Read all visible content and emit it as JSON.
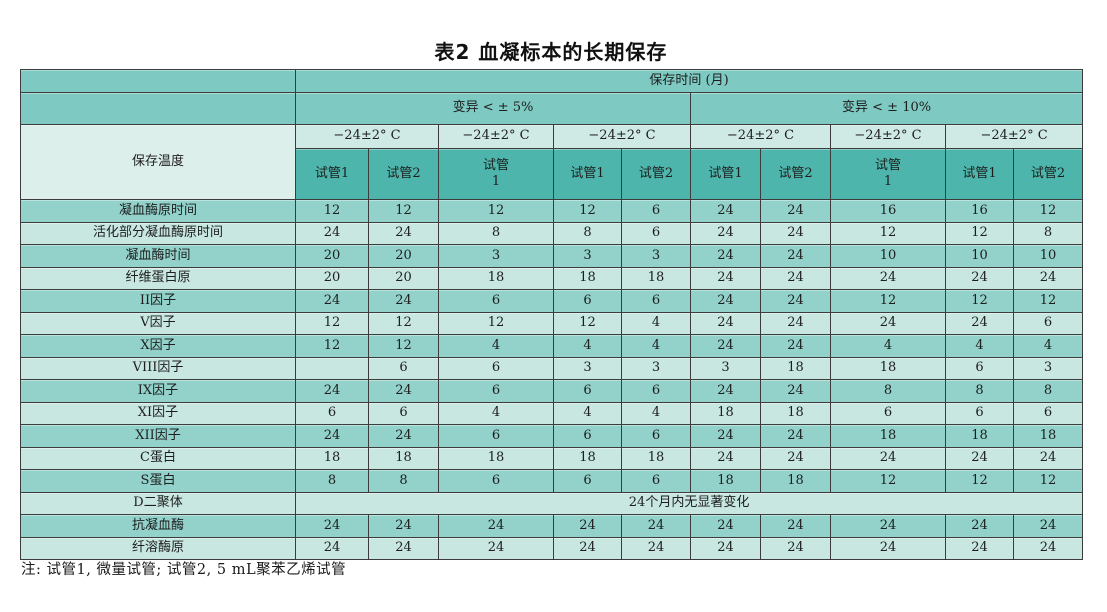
{
  "title": "表2 血凝标本的长期保存",
  "table": {
    "corner_label": "保存温度",
    "top_header": "保存时间 (月)",
    "group_headers": [
      "变异 < ± 5%",
      "变异 < ± 10%"
    ],
    "temp_headers": [
      "−24±2° C",
      "−24±2° C",
      "−24±2° C",
      "−24±2° C",
      "−24±2° C",
      "−24±2° C"
    ],
    "tube_headers": [
      "试管1",
      "试管2",
      "试管\n1",
      "试管1",
      "试管2",
      "试管1",
      "试管2",
      "试管\n1",
      "试管1",
      "试管2"
    ],
    "rows": [
      {
        "label": "凝血酶原时间",
        "values": [
          "12",
          "12",
          "12",
          "12",
          "6",
          "24",
          "24",
          "16",
          "16",
          "12"
        ]
      },
      {
        "label": "活化部分凝血酶原时间",
        "values": [
          "24",
          "24",
          "8",
          "8",
          "6",
          "24",
          "24",
          "12",
          "12",
          "8"
        ]
      },
      {
        "label": "凝血酶时间",
        "values": [
          "20",
          "20",
          "3",
          "3",
          "3",
          "24",
          "24",
          "10",
          "10",
          "10"
        ]
      },
      {
        "label": "纤维蛋白原",
        "values": [
          "20",
          "20",
          "18",
          "18",
          "18",
          "24",
          "24",
          "24",
          "24",
          "24"
        ]
      },
      {
        "label": "II因子",
        "values": [
          "24",
          "24",
          "6",
          "6",
          "6",
          "24",
          "24",
          "12",
          "12",
          "12"
        ]
      },
      {
        "label": "V因子",
        "values": [
          "12",
          "12",
          "12",
          "12",
          "4",
          "24",
          "24",
          "24",
          "24",
          "6"
        ]
      },
      {
        "label": "X因子",
        "values": [
          "12",
          "12",
          "4",
          "4",
          "4",
          "24",
          "24",
          "4",
          "4",
          "4"
        ]
      },
      {
        "label": "VIII因子",
        "values": [
          "",
          "6",
          "6",
          "3",
          "3",
          "3",
          "18",
          "18",
          "6",
          "3"
        ]
      },
      {
        "label": "IX因子",
        "values": [
          "24",
          "24",
          "6",
          "6",
          "6",
          "24",
          "24",
          "8",
          "8",
          "8"
        ]
      },
      {
        "label": "XI因子",
        "values": [
          "6",
          "6",
          "4",
          "4",
          "4",
          "18",
          "18",
          "6",
          "6",
          "6"
        ]
      },
      {
        "label": "XII因子",
        "values": [
          "24",
          "24",
          "6",
          "6",
          "6",
          "24",
          "24",
          "18",
          "18",
          "18"
        ]
      },
      {
        "label": "C蛋白",
        "values": [
          "18",
          "18",
          "18",
          "18",
          "18",
          "24",
          "24",
          "24",
          "24",
          "24"
        ]
      },
      {
        "label": "S蛋白",
        "values": [
          "8",
          "8",
          "6",
          "6",
          "6",
          "18",
          "18",
          "12",
          "12",
          "12"
        ]
      },
      {
        "label": "D二聚体",
        "merged": "24个月内无显著变化"
      },
      {
        "label": "抗凝血酶",
        "values": [
          "24",
          "24",
          "24",
          "24",
          "24",
          "24",
          "24",
          "24",
          "24",
          "24"
        ]
      },
      {
        "label": "纤溶酶原",
        "values": [
          "24",
          "24",
          "24",
          "24",
          "24",
          "24",
          "24",
          "24",
          "24",
          "24"
        ]
      }
    ]
  },
  "footnote": "注: 试管1, 微量试管; 试管2, 5 mL聚苯乙烯试管",
  "colors": {
    "header_teal": "#7ec9c1",
    "band_light": "#cfe9e4",
    "tube_teal": "#4db5ab",
    "corner_light": "#ddefeb",
    "row_dark": "#92d2ca",
    "row_light": "#c8e7e1",
    "border": "#3c3c3c",
    "text": "#1e1e1e"
  }
}
